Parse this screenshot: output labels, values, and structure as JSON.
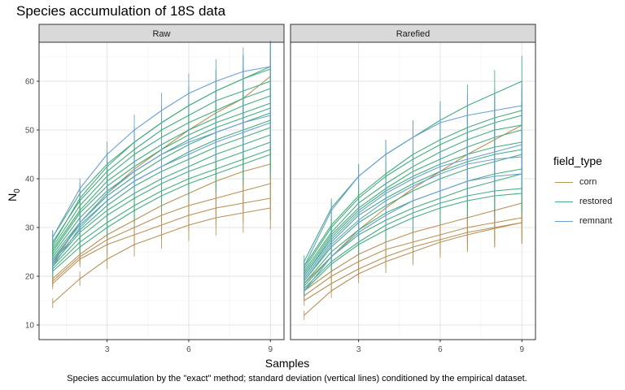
{
  "chart_data": {
    "type": "line",
    "title": "Species accumulation of 18S data",
    "xlabel": "Samples",
    "ylabel_main": "N",
    "ylabel_sub": "0",
    "caption": "Species accumulation by the \"exact\" method; standard deviation (vertical lines) conditioned by the empirical dataset.",
    "legend_title": "field_type",
    "xlim": [
      0.5,
      9.5
    ],
    "ylim": [
      7,
      68
    ],
    "x_ticks": [
      3,
      6,
      9
    ],
    "y_ticks": [
      10,
      20,
      30,
      40,
      50,
      60
    ],
    "x": [
      1,
      2,
      3,
      4,
      5,
      6,
      7,
      8,
      9
    ],
    "grid": true,
    "legend_position": "right",
    "groups": [
      {
        "name": "corn",
        "color": "#b89157"
      },
      {
        "name": "restored",
        "color": "#46ad7e"
      },
      {
        "name": "remnant",
        "color": "#6a9fd2"
      }
    ],
    "panels": [
      {
        "label": "Raw",
        "series": [
          {
            "group": "corn",
            "values": [
              14.5,
              19.5,
              23.5,
              26.5,
              28.5,
              30.5,
              32,
              33,
              34
            ]
          },
          {
            "group": "corn",
            "values": [
              18.5,
              23.5,
              26.5,
              28.5,
              30.5,
              32.5,
              34,
              35,
              36
            ]
          },
          {
            "group": "corn",
            "values": [
              19,
              24,
              27.5,
              30,
              32.5,
              34.5,
              36,
              37.5,
              39
            ]
          },
          {
            "group": "corn",
            "values": [
              19.5,
              24.5,
              28.5,
              31.5,
              34.5,
              37,
              39.5,
              41.5,
              43
            ]
          },
          {
            "group": "corn",
            "values": [
              22.5,
              31,
              37,
              42,
              46,
              50,
              53.5,
              56.5,
              61
            ]
          },
          {
            "group": "restored",
            "values": [
              21,
              26,
              30,
              33.5,
              36.5,
              39,
              41,
              43,
              45
            ]
          },
          {
            "group": "restored",
            "values": [
              21.5,
              27,
              31,
              34.5,
              37.5,
              40,
              42,
              44,
              46
            ]
          },
          {
            "group": "restored",
            "values": [
              22,
              28,
              32.5,
              36,
              39,
              41.5,
              43.5,
              45.5,
              47.5
            ]
          },
          {
            "group": "restored",
            "values": [
              22.5,
              29,
              33.5,
              37,
              40,
              42.5,
              45,
              47,
              49
            ]
          },
          {
            "group": "restored",
            "values": [
              23,
              29.5,
              34.5,
              38.5,
              41.5,
              44,
              46.5,
              48.5,
              50.5
            ]
          },
          {
            "group": "restored",
            "values": [
              23.5,
              30.5,
              35.5,
              39.5,
              42.5,
              45.5,
              48,
              50,
              52
            ]
          },
          {
            "group": "restored",
            "values": [
              24,
              31,
              36.5,
              40.5,
              44,
              47,
              49.5,
              51.5,
              53.5
            ]
          },
          {
            "group": "restored",
            "values": [
              24.5,
              32,
              37.5,
              41.5,
              45,
              48,
              50.5,
              52.5,
              54.5
            ]
          },
          {
            "group": "restored",
            "values": [
              25,
              33,
              38.5,
              42.5,
              46,
              49,
              51.5,
              53.5,
              55.5
            ]
          },
          {
            "group": "restored",
            "values": [
              25.5,
              33.5,
              39.5,
              43.5,
              47,
              50,
              52.5,
              55,
              57
            ]
          },
          {
            "group": "restored",
            "values": [
              26,
              34.5,
              40.5,
              45,
              48.5,
              51.5,
              54,
              56.5,
              58.5
            ]
          },
          {
            "group": "restored",
            "values": [
              27,
              35.5,
              41.5,
              46,
              50,
              53,
              56,
              58,
              60
            ]
          },
          {
            "group": "restored",
            "values": [
              28,
              37,
              43,
              47.5,
              51.5,
              55,
              58,
              60.5,
              63
            ]
          },
          {
            "group": "restored",
            "values": [
              26.5,
              36,
              42.5,
              47.5,
              51.5,
              55,
              58,
              60.5,
              62.5
            ]
          },
          {
            "group": "remnant",
            "values": [
              22,
              30,
              35.5,
              39.5,
              42.5,
              45,
              47.5,
              49.5,
              51.5
            ]
          },
          {
            "group": "remnant",
            "values": [
              23,
              31,
              37,
              41.5,
              45,
              47.5,
              49.5,
              51.5,
              53
            ]
          },
          {
            "group": "remnant",
            "values": [
              28,
              38,
              45,
              50,
              54,
              57.5,
              60,
              62,
              63
            ]
          }
        ]
      },
      {
        "label": "Rarefied",
        "series": [
          {
            "group": "corn",
            "values": [
              12,
              17,
              20.5,
              23,
              25,
              27,
              28.5,
              29.8,
              31
            ]
          },
          {
            "group": "corn",
            "values": [
              15,
              18.5,
              21.5,
              24,
              26,
              27.5,
              29,
              30,
              31
            ]
          },
          {
            "group": "corn",
            "values": [
              16,
              20,
              23,
              25.5,
              27,
              28.5,
              30,
              31,
              32
            ]
          },
          {
            "group": "corn",
            "values": [
              17,
              21,
              24.5,
              27,
              29,
              30.5,
              32,
              33.5,
              35
            ]
          },
          {
            "group": "corn",
            "values": [
              18.5,
              24,
              29.5,
              34,
              38,
              41.5,
              45,
              48,
              51
            ]
          },
          {
            "group": "restored",
            "values": [
              17,
              22.5,
              26.5,
              29.5,
              32,
              34,
              35.5,
              36.5,
              37
            ]
          },
          {
            "group": "restored",
            "values": [
              17.5,
              23,
              27,
              30.5,
              33,
              35,
              36.5,
              37.5,
              38
            ]
          },
          {
            "group": "restored",
            "values": [
              18,
              24,
              28.5,
              31.5,
              34,
              36,
              38,
              39.5,
              41
            ]
          },
          {
            "group": "restored",
            "values": [
              18.5,
              25,
              29.5,
              33,
              35.5,
              37.5,
              39.5,
              41,
              42
            ]
          },
          {
            "group": "restored",
            "values": [
              19,
              26,
              31,
              34.5,
              37.5,
              40,
              42,
              43.5,
              45
            ]
          },
          {
            "group": "restored",
            "values": [
              19.5,
              27,
              32.5,
              36,
              39,
              41.5,
              43.5,
              45,
              46
            ]
          },
          {
            "group": "restored",
            "values": [
              20,
              28,
              33.5,
              37.5,
              40.5,
              43,
              45,
              46.5,
              47.5
            ]
          },
          {
            "group": "restored",
            "values": [
              20.5,
              28.5,
              34,
              38,
              41.5,
              44,
              46.5,
              48.5,
              50
            ]
          },
          {
            "group": "restored",
            "values": [
              21,
              29,
              35,
              39,
              42.5,
              45.5,
              48,
              50,
              51
            ]
          },
          {
            "group": "restored",
            "values": [
              21.5,
              30,
              36,
              40.5,
              44,
              47,
              49.5,
              51.5,
              53
            ]
          },
          {
            "group": "restored",
            "values": [
              22,
              30.5,
              36.5,
              41,
              45,
              48,
              50.5,
              52.5,
              54
            ]
          },
          {
            "group": "restored",
            "values": [
              23,
              34,
              40.5,
              45,
              48.5,
              52,
              55,
              57.5,
              60
            ]
          },
          {
            "group": "remnant",
            "values": [
              17,
              24,
              29,
              32.5,
              35.5,
              37.5,
              39.5,
              40.5,
              41
            ]
          },
          {
            "group": "remnant",
            "values": [
              19,
              26.5,
              31.5,
              35.5,
              38.5,
              41,
              43,
              44,
              44.5
            ]
          },
          {
            "group": "remnant",
            "values": [
              20,
              27.5,
              33,
              37,
              40,
              42.5,
              44,
              45.5,
              47
            ]
          },
          {
            "group": "remnant",
            "values": [
              22,
              33.5,
              40.5,
              45,
              48.5,
              51.5,
              53,
              54,
              55
            ]
          }
        ]
      }
    ]
  }
}
